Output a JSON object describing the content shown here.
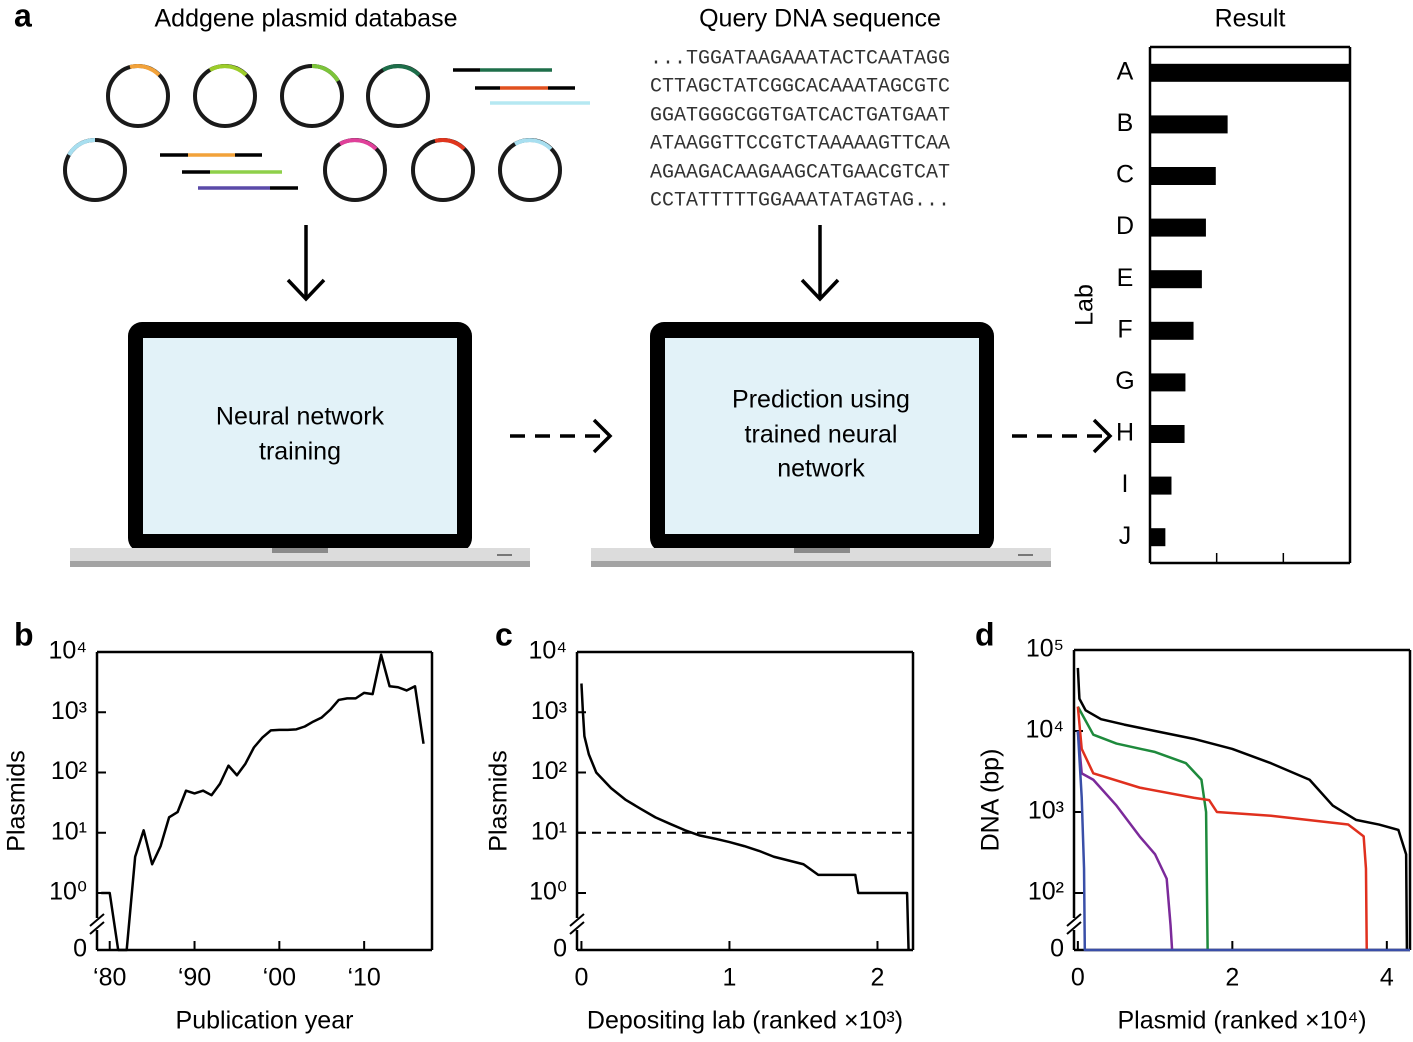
{
  "panel_a": {
    "label": "a",
    "database_title": "Addgene plasmid database",
    "query_title": "Query DNA sequence",
    "query_sequence": [
      "...TGGATAAGAAATACTCAATAGG",
      "CTTAGCTATCGGCACAAATAGCGTC",
      "GGATGGGCGGTGATCACTGATGAAT",
      "ATAAGGTTCCGTCTAAAAAGTTCAA",
      "AGAAGACAAGAAGCATGAACGTCAT",
      "CCTATTTTTGGAAATATAGTAG..."
    ],
    "training_label": [
      "Neural network",
      "training"
    ],
    "prediction_label": [
      "Prediction using",
      "trained neural",
      "network"
    ]
  },
  "chart_data": [
    {
      "type": "bar",
      "orientation": "horizontal",
      "title": "Result",
      "ylabel": "Lab",
      "categories": [
        "A",
        "B",
        "C",
        "D",
        "E",
        "F",
        "G",
        "H",
        "I",
        "J"
      ],
      "values": [
        1000,
        14.6,
        9.7,
        6.9,
        6.0,
        4.5,
        3.4,
        3.3,
        2.1,
        1.7
      ],
      "color": "#000000",
      "xscale": "log",
      "xlim": [
        1,
        1000
      ],
      "xticks": [
        1,
        10,
        100,
        1000
      ]
    },
    {
      "type": "line",
      "panel_label": "b",
      "xlabel": "Publication year",
      "ylabel": "Plasmids",
      "color": "#000000",
      "x": [
        1979,
        1980,
        1981,
        1982,
        1983,
        1984,
        1985,
        1986,
        1987,
        1988,
        1989,
        1990,
        1991,
        1992,
        1993,
        1994,
        1995,
        1996,
        1997,
        1998,
        1999,
        2000,
        2001,
        2002,
        2003,
        2004,
        2005,
        2006,
        2007,
        2008,
        2009,
        2010,
        2011,
        2012,
        2013,
        2014,
        2015,
        2016,
        2017
      ],
      "values": [
        1,
        1,
        0,
        0,
        4,
        11,
        3,
        6,
        18,
        22,
        50,
        45,
        50,
        42,
        65,
        130,
        90,
        140,
        260,
        380,
        500,
        510,
        510,
        520,
        580,
        700,
        820,
        1100,
        1600,
        1700,
        1700,
        2100,
        2000,
        9000,
        2700,
        2600,
        2300,
        2700,
        300
      ],
      "xlim": [
        1978.5,
        2018
      ],
      "xticks": [
        {
          "value": 1980,
          "label": "‘80"
        },
        {
          "value": 1990,
          "label": "‘90"
        },
        {
          "value": 2000,
          "label": "‘00"
        },
        {
          "value": 2010,
          "label": "‘10"
        }
      ],
      "yscale": "log",
      "ylim": [
        0,
        10000
      ],
      "yticks": [
        0,
        {
          "value": 1,
          "label": "10⁰"
        },
        {
          "value": 10,
          "label": "10¹"
        },
        {
          "value": 100,
          "label": "10²"
        },
        {
          "value": 1000,
          "label": "10³"
        },
        {
          "value": 10000,
          "label": "10⁴"
        }
      ]
    },
    {
      "type": "line",
      "panel_label": "c",
      "xlabel": "Depositing lab (ranked ×10³)",
      "ylabel": "Plasmids",
      "color": "#000000",
      "x": [
        0,
        0.01,
        0.02,
        0.05,
        0.1,
        0.2,
        0.3,
        0.4,
        0.5,
        0.6,
        0.7,
        0.8,
        0.9,
        1.0,
        1.1,
        1.2,
        1.3,
        1.5,
        1.6,
        1.85,
        1.87,
        2.2,
        2.21
      ],
      "values": [
        3000,
        1000,
        400,
        200,
        100,
        55,
        35,
        25,
        18,
        14,
        11,
        9,
        8,
        7,
        6,
        5,
        4,
        3,
        2,
        2,
        1,
        1,
        0
      ],
      "reference_line": 10,
      "xlim": [
        -0.03,
        2.24
      ],
      "xticks": [
        0,
        1,
        2
      ],
      "yscale": "log",
      "ylim": [
        0,
        10000
      ],
      "yticks": [
        0,
        {
          "value": 1,
          "label": "10⁰"
        },
        {
          "value": 10,
          "label": "10¹"
        },
        {
          "value": 100,
          "label": "10²"
        },
        {
          "value": 1000,
          "label": "10³"
        },
        {
          "value": 10000,
          "label": "10⁴"
        }
      ]
    },
    {
      "type": "line",
      "panel_label": "d",
      "xlabel": "Plasmid (ranked ×10⁴)",
      "ylabel": "DNA (bp)",
      "series": [
        {
          "color": "#000000",
          "x": [
            0,
            0.02,
            0.1,
            0.3,
            0.6,
            1,
            1.5,
            2,
            2.5,
            3,
            3.3,
            3.6,
            3.9,
            4.15,
            4.25,
            4.26
          ],
          "values": [
            60000,
            25000,
            18000,
            14000,
            12000,
            10000,
            8000,
            6000,
            4000,
            2500,
            1200,
            800,
            700,
            600,
            300,
            0
          ]
        },
        {
          "color": "#1e8a3c",
          "x": [
            0,
            0.2,
            0.5,
            1,
            1.4,
            1.6,
            1.66,
            1.68
          ],
          "values": [
            20000,
            9000,
            7000,
            5500,
            4000,
            2500,
            1000,
            0
          ]
        },
        {
          "color": "#e0301e",
          "x": [
            0,
            0.05,
            0.2,
            0.8,
            1.5,
            1.7,
            1.8,
            2.5,
            3.5,
            3.7,
            3.73,
            3.74
          ],
          "values": [
            20000,
            6000,
            3000,
            2000,
            1500,
            1400,
            1000,
            900,
            700,
            500,
            200,
            0
          ]
        },
        {
          "color": "#7b2a9a",
          "x": [
            0,
            0.05,
            0.2,
            0.5,
            0.8,
            1.0,
            1.15,
            1.2,
            1.22
          ],
          "values": [
            10000,
            3000,
            2500,
            1200,
            500,
            300,
            150,
            40,
            0
          ]
        },
        {
          "color": "#3a4fa8",
          "x": [
            0,
            0.05,
            0.08,
            0.09,
            4.3
          ],
          "values": [
            10000,
            1500,
            200,
            0,
            0
          ]
        }
      ],
      "xlim": [
        -0.05,
        4.3
      ],
      "xticks": [
        0,
        2,
        4
      ],
      "yscale": "log",
      "ylim": [
        0,
        100000
      ],
      "yticks": [
        0,
        {
          "value": 100,
          "label": "10²"
        },
        {
          "value": 1000,
          "label": "10³"
        },
        {
          "value": 10000,
          "label": "10⁴"
        },
        {
          "value": 100000,
          "label": "10⁵"
        }
      ]
    }
  ]
}
